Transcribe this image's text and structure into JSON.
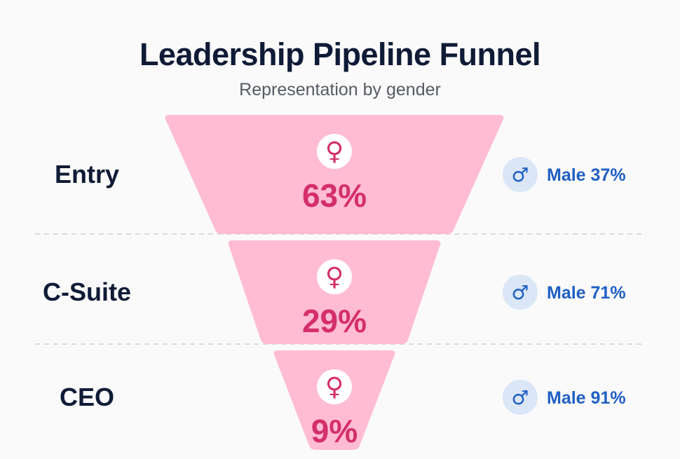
{
  "chart_data": {
    "type": "funnel",
    "title": "Leadership Pipeline Funnel",
    "subtitle": "Representation by gender",
    "male_prefix": "Male",
    "female_symbol": "♀",
    "male_symbol": "♂",
    "stages": [
      {
        "name": "Entry",
        "female": 63,
        "male": 37
      },
      {
        "name": "C-Suite",
        "female": 29,
        "male": 71
      },
      {
        "name": "CEO",
        "female": 9,
        "male": 91
      }
    ],
    "colors": {
      "funnel_fill": "#ffbcd3",
      "female_text": "#d42f6a",
      "male_text": "#1f5fc4",
      "male_badge": "#dbe6f7",
      "title": "#0f1b36",
      "divider": "#cfcfcf"
    }
  }
}
